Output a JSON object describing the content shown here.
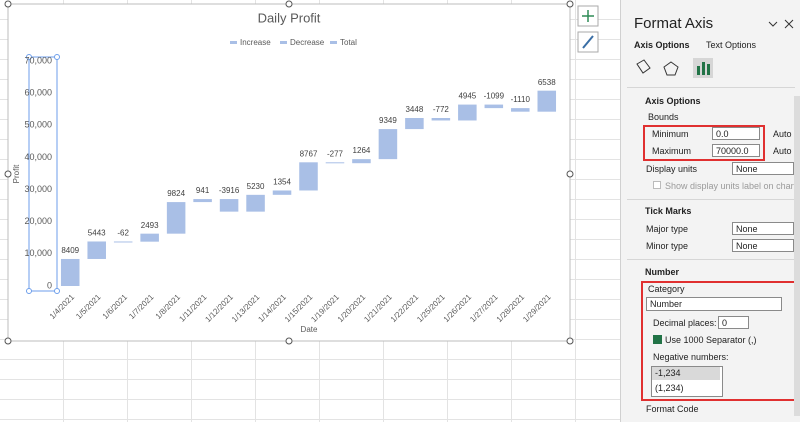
{
  "chart_data": {
    "type": "waterfall",
    "title": "Daily Profit",
    "legend": [
      "Increase",
      "Decrease",
      "Total"
    ],
    "color": "#a9bfe6",
    "categories": [
      "1/4/2021",
      "1/5/2021",
      "1/6/2021",
      "1/7/2021",
      "1/8/2021",
      "1/11/2021",
      "1/12/2021",
      "1/13/2021",
      "1/14/2021",
      "1/15/2021",
      "1/19/2021",
      "1/20/2021",
      "1/21/2021",
      "1/22/2021",
      "1/25/2021",
      "1/26/2021",
      "1/27/2021",
      "1/28/2021",
      "1/29/2021"
    ],
    "values": [
      8409,
      5443,
      -62,
      2493,
      9824,
      941,
      -3916,
      5230,
      1354,
      8767,
      -277,
      1264,
      9349,
      3448,
      -772,
      4945,
      -1099,
      -1110,
      6538
    ],
    "x_label": "Date",
    "y_label": "Profit",
    "ylim": [
      0,
      70000
    ],
    "yticks": [
      0,
      {
        "value": 10000,
        "label": "10,000"
      },
      {
        "value": 20000,
        "label": "20,000"
      },
      {
        "value": 30000,
        "label": "30,000"
      },
      {
        "value": 40000,
        "label": "40,000"
      },
      {
        "value": 50000,
        "label": "50,000"
      },
      {
        "value": 60000,
        "label": "60,000"
      },
      {
        "value": 70000,
        "label": "70,000"
      }
    ],
    "grid": false
  },
  "format_pane": {
    "title": "Format Axis",
    "tabs": [
      "Axis Options",
      "Text Options"
    ],
    "axis_options": {
      "header": "Axis Options",
      "bounds": "Bounds",
      "minimum": {
        "label": "Minimum",
        "value": "0.0",
        "mode": "Auto"
      },
      "maximum": {
        "label": "Maximum",
        "value": "70000.0",
        "mode": "Auto"
      },
      "display_units": {
        "label": "Display units",
        "value": "None"
      },
      "show_units_label": "Show display units label on chart"
    },
    "tick_marks": {
      "header": "Tick Marks",
      "major": {
        "label": "Major type",
        "value": "None"
      },
      "minor": {
        "label": "Minor type",
        "value": "None"
      }
    },
    "number": {
      "header": "Number",
      "category_label": "Category",
      "category": "Number",
      "decimal_label": "Decimal places:",
      "decimal": "0",
      "separator": "Use 1000 Separator (,)",
      "negative_label": "Negative numbers:",
      "negative_options": [
        "-1,234",
        "(1,234)"
      ],
      "format_code": "Format Code"
    }
  }
}
